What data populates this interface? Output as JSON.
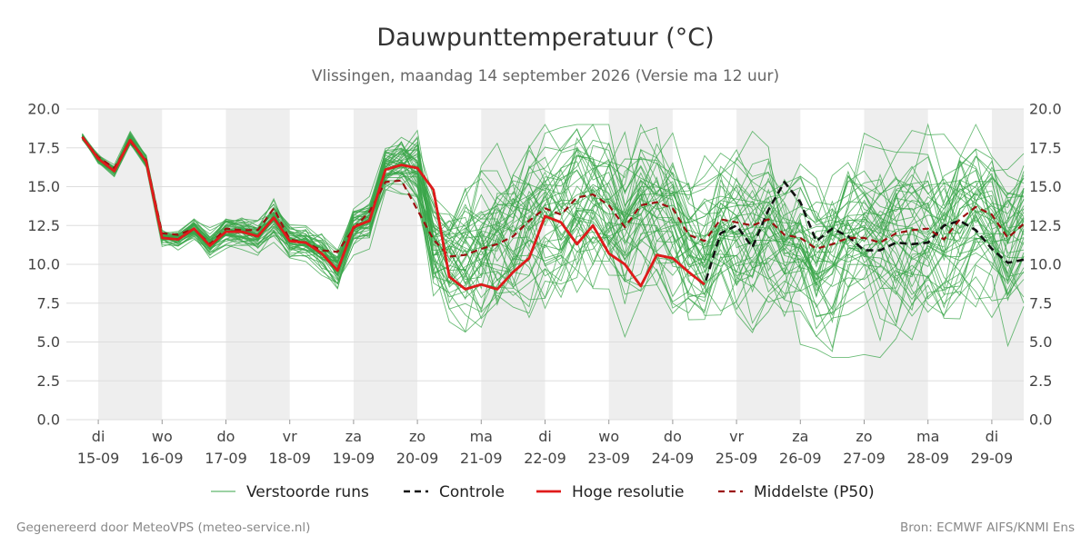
{
  "chart_data": {
    "type": "line",
    "title": "Dauwpunttemperatuur (°C)",
    "subtitle": "Vlissingen, maandag 14 september 2026 (Versie ma 12 uur)",
    "ylim": [
      0,
      20
    ],
    "yticks": [
      "0.0",
      "2.5",
      "5.0",
      "7.5",
      "10.0",
      "12.5",
      "15.0",
      "17.5",
      "20.0"
    ],
    "x_range": [
      "2026-09-14 12:00",
      "2026-09-29 12:00"
    ],
    "x_ticks": [
      {
        "date": "2026-09-15",
        "day": "di",
        "label": "15-09"
      },
      {
        "date": "2026-09-16",
        "day": "wo",
        "label": "16-09"
      },
      {
        "date": "2026-09-17",
        "day": "do",
        "label": "17-09"
      },
      {
        "date": "2026-09-18",
        "day": "vr",
        "label": "18-09"
      },
      {
        "date": "2026-09-19",
        "day": "za",
        "label": "19-09"
      },
      {
        "date": "2026-09-20",
        "day": "zo",
        "label": "20-09"
      },
      {
        "date": "2026-09-21",
        "day": "ma",
        "label": "21-09"
      },
      {
        "date": "2026-09-22",
        "day": "di",
        "label": "22-09"
      },
      {
        "date": "2026-09-23",
        "day": "wo",
        "label": "23-09"
      },
      {
        "date": "2026-09-24",
        "day": "do",
        "label": "24-09"
      },
      {
        "date": "2026-09-25",
        "day": "vr",
        "label": "25-09"
      },
      {
        "date": "2026-09-26",
        "day": "za",
        "label": "26-09"
      },
      {
        "date": "2026-09-27",
        "day": "zo",
        "label": "27-09"
      },
      {
        "date": "2026-09-28",
        "day": "ma",
        "label": "28-09"
      },
      {
        "date": "2026-09-29",
        "day": "di",
        "label": "29-09"
      }
    ],
    "shaded_days": [
      "2026-09-15",
      "2026-09-17",
      "2026-09-19",
      "2026-09-21",
      "2026-09-23",
      "2026-09-25",
      "2026-09-27",
      "2026-09-29"
    ],
    "grid": true,
    "legend": "bottom",
    "colors": {
      "ensemble": "#3aa64a",
      "control": "#111111",
      "hires": "#e01b1b",
      "median": "#9b1010",
      "shade": "#eeeeee",
      "grid": "#dddddd"
    },
    "ensemble": {
      "name": "Verstoorde runs",
      "members": 50,
      "start": "2026-09-14 18:00",
      "step_hours": 6,
      "start_value": 18.2
    },
    "series": [
      {
        "name": "Controle",
        "style": "dashed",
        "x": [
          "2026-09-14 18:00",
          "2026-09-15 00:00",
          "2026-09-15 06:00",
          "2026-09-15 12:00",
          "2026-09-15 18:00",
          "2026-09-16 00:00",
          "2026-09-16 06:00",
          "2026-09-16 12:00",
          "2026-09-16 18:00",
          "2026-09-17 00:00",
          "2026-09-17 06:00",
          "2026-09-17 12:00",
          "2026-09-17 18:00",
          "2026-09-18 00:00",
          "2026-09-18 06:00",
          "2026-09-18 12:00",
          "2026-09-18 18:00",
          "2026-09-19 00:00",
          "2026-09-19 06:00",
          "2026-09-19 12:00",
          "2026-09-19 18:00",
          "2026-09-20 00:00",
          "2026-09-20 06:00",
          "2026-09-20 12:00",
          "2026-09-20 18:00",
          "2026-09-21 00:00",
          "2026-09-21 06:00",
          "2026-09-21 12:00",
          "2026-09-21 18:00",
          "2026-09-22 00:00",
          "2026-09-22 06:00",
          "2026-09-22 12:00",
          "2026-09-22 18:00",
          "2026-09-23 00:00",
          "2026-09-23 06:00",
          "2026-09-23 12:00",
          "2026-09-23 18:00",
          "2026-09-24 00:00",
          "2026-09-24 06:00",
          "2026-09-24 12:00",
          "2026-09-24 18:00",
          "2026-09-25 00:00",
          "2026-09-25 06:00",
          "2026-09-25 12:00",
          "2026-09-25 18:00",
          "2026-09-26 00:00",
          "2026-09-26 06:00",
          "2026-09-26 12:00",
          "2026-09-26 18:00",
          "2026-09-27 00:00",
          "2026-09-27 06:00",
          "2026-09-27 12:00",
          "2026-09-27 18:00",
          "2026-09-28 00:00",
          "2026-09-28 06:00",
          "2026-09-28 12:00",
          "2026-09-28 18:00",
          "2026-09-29 00:00",
          "2026-09-29 06:00",
          "2026-09-29 12:00"
        ],
        "y": [
          18.2,
          16.8,
          16.0,
          18.0,
          16.6,
          11.7,
          11.6,
          12.3,
          11.2,
          12.1,
          12.1,
          11.8,
          13.0,
          11.5,
          11.4,
          10.7,
          9.6,
          12.4,
          12.8,
          16.1,
          16.4,
          16.2,
          14.8,
          9.2,
          8.4,
          8.7,
          8.4,
          9.5,
          10.4,
          13.1,
          12.7,
          11.3,
          12.5,
          10.7,
          10.0,
          8.6,
          10.6,
          10.4,
          9.5,
          8.7,
          12.0,
          12.5,
          11.1,
          13.5,
          15.3,
          14.0,
          11.5,
          12.3,
          11.8,
          10.9,
          10.9,
          11.4,
          11.3,
          11.4,
          12.5,
          12.8,
          12.2,
          11.0,
          10.1,
          10.3
        ]
      },
      {
        "name": "Hoge resolutie",
        "style": "solid",
        "x": [
          "2026-09-14 18:00",
          "2026-09-15 00:00",
          "2026-09-15 06:00",
          "2026-09-15 12:00",
          "2026-09-15 18:00",
          "2026-09-16 00:00",
          "2026-09-16 06:00",
          "2026-09-16 12:00",
          "2026-09-16 18:00",
          "2026-09-17 00:00",
          "2026-09-17 06:00",
          "2026-09-17 12:00",
          "2026-09-17 18:00",
          "2026-09-18 00:00",
          "2026-09-18 06:00",
          "2026-09-18 12:00",
          "2026-09-18 18:00",
          "2026-09-19 00:00",
          "2026-09-19 06:00",
          "2026-09-19 12:00",
          "2026-09-19 18:00",
          "2026-09-20 00:00",
          "2026-09-20 06:00",
          "2026-09-20 12:00",
          "2026-09-20 18:00",
          "2026-09-21 00:00",
          "2026-09-21 06:00",
          "2026-09-21 12:00",
          "2026-09-21 18:00",
          "2026-09-22 00:00",
          "2026-09-22 06:00",
          "2026-09-22 12:00",
          "2026-09-22 18:00",
          "2026-09-23 00:00",
          "2026-09-23 06:00",
          "2026-09-23 12:00",
          "2026-09-23 18:00",
          "2026-09-24 00:00",
          "2026-09-24 06:00",
          "2026-09-24 12:00"
        ],
        "y": [
          18.2,
          16.8,
          16.0,
          18.0,
          16.6,
          11.7,
          11.6,
          12.3,
          11.2,
          12.1,
          12.1,
          11.8,
          13.0,
          11.5,
          11.4,
          10.7,
          9.6,
          12.4,
          12.8,
          16.1,
          16.4,
          16.2,
          14.8,
          9.2,
          8.4,
          8.7,
          8.4,
          9.5,
          10.4,
          13.1,
          12.7,
          11.3,
          12.5,
          10.7,
          10.0,
          8.6,
          10.6,
          10.4,
          9.5,
          8.7
        ]
      },
      {
        "name": "Middelste (P50)",
        "style": "dashed",
        "x": [
          "2026-09-14 18:00",
          "2026-09-15 00:00",
          "2026-09-15 06:00",
          "2026-09-15 12:00",
          "2026-09-15 18:00",
          "2026-09-16 00:00",
          "2026-09-16 06:00",
          "2026-09-16 12:00",
          "2026-09-16 18:00",
          "2026-09-17 00:00",
          "2026-09-17 06:00",
          "2026-09-17 12:00",
          "2026-09-17 18:00",
          "2026-09-18 00:00",
          "2026-09-18 06:00",
          "2026-09-18 12:00",
          "2026-09-18 18:00",
          "2026-09-19 00:00",
          "2026-09-19 06:00",
          "2026-09-19 12:00",
          "2026-09-19 18:00",
          "2026-09-20 00:00",
          "2026-09-20 06:00",
          "2026-09-20 12:00",
          "2026-09-20 18:00",
          "2026-09-21 00:00",
          "2026-09-21 06:00",
          "2026-09-21 12:00",
          "2026-09-21 18:00",
          "2026-09-22 00:00",
          "2026-09-22 06:00",
          "2026-09-22 12:00",
          "2026-09-22 18:00",
          "2026-09-23 00:00",
          "2026-09-23 06:00",
          "2026-09-23 12:00",
          "2026-09-23 18:00",
          "2026-09-24 00:00",
          "2026-09-24 06:00",
          "2026-09-24 12:00",
          "2026-09-24 18:00",
          "2026-09-25 00:00",
          "2026-09-25 06:00",
          "2026-09-25 12:00",
          "2026-09-25 18:00",
          "2026-09-26 00:00",
          "2026-09-26 06:00",
          "2026-09-26 12:00",
          "2026-09-26 18:00",
          "2026-09-27 00:00",
          "2026-09-27 06:00",
          "2026-09-27 12:00",
          "2026-09-27 18:00",
          "2026-09-28 00:00",
          "2026-09-28 06:00",
          "2026-09-28 12:00",
          "2026-09-28 18:00",
          "2026-09-29 00:00",
          "2026-09-29 06:00",
          "2026-09-29 12:00"
        ],
        "y": [
          18.2,
          16.9,
          16.2,
          17.9,
          16.7,
          12.0,
          11.9,
          12.3,
          11.3,
          12.3,
          12.2,
          12.2,
          13.6,
          11.6,
          11.4,
          10.9,
          10.8,
          12.3,
          13.4,
          15.3,
          15.4,
          13.5,
          11.6,
          10.5,
          10.6,
          11.0,
          11.3,
          11.8,
          12.8,
          13.6,
          13.2,
          14.3,
          14.5,
          13.8,
          12.4,
          13.8,
          14.0,
          13.6,
          11.9,
          11.5,
          12.9,
          12.7,
          12.5,
          12.9,
          11.9,
          11.7,
          11.0,
          11.3,
          11.7,
          11.7,
          11.4,
          12.0,
          12.2,
          12.3,
          11.6,
          12.9,
          13.7,
          13.2,
          11.7,
          12.6
        ]
      }
    ],
    "legend_entries": [
      {
        "name": "Verstoorde runs",
        "color": "#3aa64a",
        "style": "thin"
      },
      {
        "name": "Controle",
        "color": "#111111",
        "style": "dashed"
      },
      {
        "name": "Hoge resolutie",
        "color": "#e01b1b",
        "style": "solid"
      },
      {
        "name": "Middelste (P50)",
        "color": "#9b1010",
        "style": "dashed"
      }
    ]
  },
  "footer": {
    "left": "Gegenereerd door MeteoVPS (meteo-service.nl)",
    "right": "Bron: ECMWF AIFS/KNMI Ens"
  }
}
